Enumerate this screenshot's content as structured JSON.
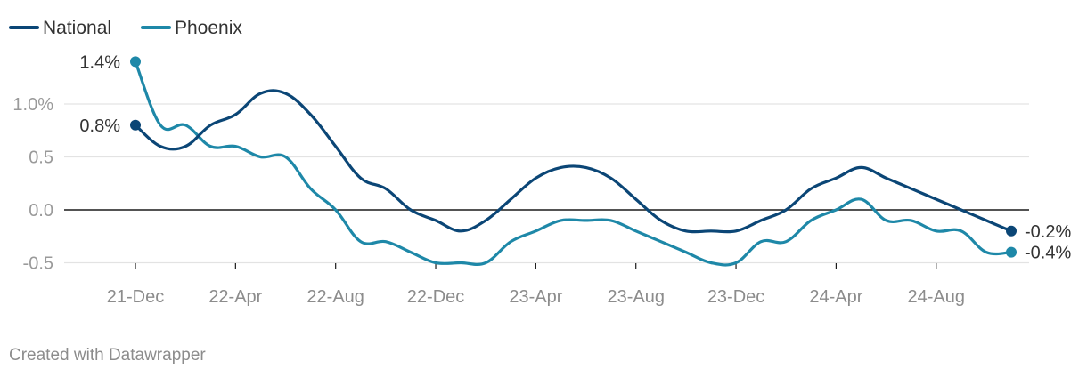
{
  "legend": [
    {
      "name": "National",
      "color": "#0b4676"
    },
    {
      "name": "Phoenix",
      "color": "#1e88a8"
    }
  ],
  "footer": "Created with Datawrapper",
  "chart_data": {
    "type": "line",
    "x_ticks": [
      "21-Dec",
      "22-Apr",
      "22-Aug",
      "22-Dec",
      "23-Apr",
      "23-Aug",
      "23-Dec",
      "24-Apr",
      "24-Aug"
    ],
    "y_ticks": [
      {
        "value": 1.0,
        "label": "1.0%"
      },
      {
        "value": 0.5,
        "label": "0.5"
      },
      {
        "value": 0.0,
        "label": "0.0"
      },
      {
        "value": -0.5,
        "label": "-0.5"
      }
    ],
    "ylim": [
      -0.5,
      1.4
    ],
    "grid": true,
    "legend_position": "top-left",
    "x": [
      "2021-12",
      "2022-01",
      "2022-02",
      "2022-03",
      "2022-04",
      "2022-05",
      "2022-06",
      "2022-07",
      "2022-08",
      "2022-09",
      "2022-10",
      "2022-11",
      "2022-12",
      "2023-01",
      "2023-02",
      "2023-03",
      "2023-04",
      "2023-05",
      "2023-06",
      "2023-07",
      "2023-08",
      "2023-09",
      "2023-10",
      "2023-11",
      "2023-12",
      "2024-01",
      "2024-02",
      "2024-03",
      "2024-04",
      "2024-05",
      "2024-06",
      "2024-07",
      "2024-08",
      "2024-09",
      "2024-10",
      "2024-11"
    ],
    "series": [
      {
        "name": "National",
        "color": "#0b4676",
        "values": [
          0.8,
          0.6,
          0.6,
          0.8,
          0.9,
          1.1,
          1.1,
          0.9,
          0.6,
          0.3,
          0.2,
          0.0,
          -0.1,
          -0.2,
          -0.1,
          0.1,
          0.3,
          0.4,
          0.4,
          0.3,
          0.1,
          -0.1,
          -0.2,
          -0.2,
          -0.2,
          -0.1,
          0.0,
          0.2,
          0.3,
          0.4,
          0.3,
          0.2,
          0.1,
          0.0,
          -0.1,
          -0.2
        ],
        "start_label": "0.8%",
        "end_label": "-0.2%"
      },
      {
        "name": "Phoenix",
        "color": "#1e88a8",
        "values": [
          1.4,
          0.8,
          0.8,
          0.6,
          0.6,
          0.5,
          0.5,
          0.2,
          0.0,
          -0.3,
          -0.3,
          -0.4,
          -0.5,
          -0.5,
          -0.5,
          -0.3,
          -0.2,
          -0.1,
          -0.1,
          -0.1,
          -0.2,
          -0.3,
          -0.4,
          -0.5,
          -0.5,
          -0.3,
          -0.3,
          -0.1,
          0.0,
          0.1,
          -0.1,
          -0.1,
          -0.2,
          -0.2,
          -0.4,
          -0.4
        ],
        "start_label": "1.4%",
        "end_label": "-0.4%"
      }
    ]
  }
}
